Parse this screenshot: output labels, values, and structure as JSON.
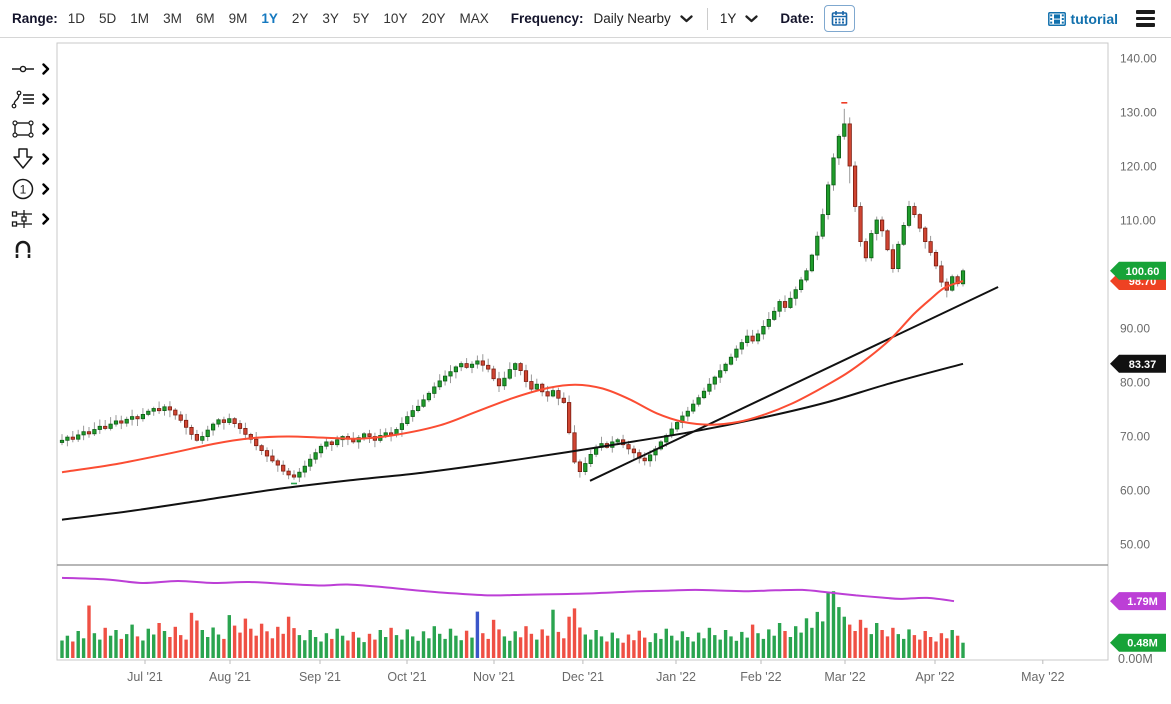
{
  "toolbar": {
    "range_label": "Range:",
    "ranges": [
      "1D",
      "5D",
      "1M",
      "3M",
      "6M",
      "9M",
      "1Y",
      "2Y",
      "3Y",
      "5Y",
      "10Y",
      "20Y",
      "MAX"
    ],
    "active_range": "1Y",
    "frequency_label": "Frequency:",
    "frequency_value": "Daily Nearby",
    "period_value": "1Y",
    "date_label": "Date:",
    "tutorial_label": "tutorial",
    "accent_color": "#1579c0"
  },
  "sidebar": {
    "tools": [
      "line-tool",
      "annotation-tool",
      "shape-tool",
      "arrow-tool",
      "number-annotation-tool",
      "levels-tool",
      "magnet-tool"
    ]
  },
  "chart_data": {
    "type": "candlestick",
    "ylim": [
      50,
      140
    ],
    "y_axis_ticks": [
      "140.00",
      "130.00",
      "120.00",
      "110.00",
      "100.00",
      "90.00",
      "80.00",
      "70.00",
      "60.00",
      "50.00"
    ],
    "x_axis_labels": [
      {
        "label": "Jul '21",
        "f": 0.0837
      },
      {
        "label": "Aug '21",
        "f": 0.1646
      },
      {
        "label": "Sep '21",
        "f": 0.2502
      },
      {
        "label": "Oct '21",
        "f": 0.333
      },
      {
        "label": "Nov '21",
        "f": 0.4158
      },
      {
        "label": "Dec '21",
        "f": 0.5004
      },
      {
        "label": "Jan '22",
        "f": 0.589
      },
      {
        "label": "Feb '22",
        "f": 0.6698
      },
      {
        "label": "Mar '22",
        "f": 0.7498
      },
      {
        "label": "Apr '22",
        "f": 0.8354
      },
      {
        "label": "May '22",
        "f": 0.938
      }
    ],
    "closes": [
      69.2,
      69.8,
      69.4,
      70.2,
      70.8,
      70.4,
      71.2,
      71.8,
      71.4,
      72.2,
      72.8,
      72.4,
      73.1,
      73.6,
      73.2,
      74.0,
      74.6,
      75.1,
      74.7,
      75.4,
      74.8,
      73.9,
      72.9,
      71.6,
      70.3,
      69.2,
      69.9,
      71.1,
      72.2,
      73.0,
      72.5,
      73.2,
      72.3,
      71.4,
      70.3,
      69.4,
      68.2,
      67.3,
      66.3,
      65.4,
      64.6,
      63.5,
      62.8,
      62.4,
      63.3,
      64.4,
      65.7,
      66.9,
      68.1,
      68.9,
      68.4,
      69.3,
      69.9,
      69.4,
      68.9,
      69.7,
      70.4,
      69.9,
      69.2,
      70.1,
      70.6,
      70.2,
      71.2,
      72.3,
      73.6,
      74.7,
      75.5,
      76.7,
      77.9,
      79.1,
      80.2,
      81.1,
      81.9,
      82.8,
      83.4,
      82.7,
      83.3,
      83.9,
      83.1,
      82.4,
      80.6,
      79.3,
      80.7,
      82.3,
      83.4,
      82.1,
      80.1,
      78.7,
      79.6,
      78.2,
      77.4,
      78.4,
      77.0,
      76.2,
      70.6,
      65.2,
      63.4,
      64.9,
      66.6,
      67.9,
      68.6,
      67.9,
      68.9,
      69.3,
      68.4,
      67.6,
      66.9,
      65.9,
      65.4,
      66.5,
      67.6,
      68.9,
      70.1,
      71.3,
      72.5,
      73.7,
      74.6,
      75.9,
      77.1,
      78.3,
      79.6,
      80.9,
      82.1,
      83.3,
      84.6,
      86.1,
      87.3,
      88.5,
      87.6,
      88.9,
      90.3,
      91.6,
      93.1,
      94.9,
      93.8,
      95.5,
      97.1,
      98.9,
      100.6,
      103.5,
      107.0,
      111.0,
      116.5,
      121.5,
      125.5,
      127.8,
      120.0,
      112.5,
      106.0,
      103.0,
      107.5,
      110.0,
      108.0,
      104.5,
      101.0,
      105.5,
      109.0,
      112.5,
      111.0,
      108.5,
      106.0,
      104.0,
      101.5,
      98.5,
      97.0,
      99.5,
      98.2,
      100.6
    ],
    "volumes": [
      0.55,
      0.7,
      0.52,
      0.85,
      0.62,
      1.65,
      0.78,
      0.58,
      0.95,
      0.7,
      0.88,
      0.6,
      0.75,
      1.05,
      0.68,
      0.55,
      0.92,
      0.74,
      1.1,
      0.85,
      0.66,
      0.98,
      0.72,
      0.58,
      1.42,
      1.18,
      0.88,
      0.66,
      0.96,
      0.74,
      0.6,
      1.35,
      1.02,
      0.8,
      1.24,
      0.92,
      0.7,
      1.08,
      0.84,
      0.62,
      0.98,
      0.76,
      1.3,
      0.94,
      0.72,
      0.56,
      0.88,
      0.66,
      0.52,
      0.78,
      0.6,
      0.92,
      0.7,
      0.55,
      0.82,
      0.64,
      0.5,
      0.76,
      0.58,
      0.88,
      0.66,
      0.95,
      0.72,
      0.58,
      0.9,
      0.68,
      0.54,
      0.84,
      0.62,
      1.0,
      0.76,
      0.6,
      0.92,
      0.7,
      0.56,
      0.86,
      0.64,
      1.46,
      0.78,
      0.6,
      1.2,
      0.9,
      0.68,
      0.54,
      0.84,
      0.65,
      1.0,
      0.76,
      0.58,
      0.9,
      0.7,
      1.52,
      0.82,
      0.62,
      1.3,
      1.56,
      0.96,
      0.74,
      0.58,
      0.88,
      0.68,
      0.52,
      0.8,
      0.62,
      0.48,
      0.74,
      0.56,
      0.86,
      0.64,
      0.5,
      0.78,
      0.6,
      0.92,
      0.7,
      0.55,
      0.84,
      0.66,
      0.52,
      0.8,
      0.62,
      0.95,
      0.72,
      0.58,
      0.88,
      0.68,
      0.54,
      0.82,
      0.64,
      1.05,
      0.78,
      0.6,
      0.9,
      0.7,
      1.1,
      0.85,
      0.66,
      1.0,
      0.8,
      1.25,
      0.95,
      1.45,
      1.15,
      2.05,
      2.1,
      1.6,
      1.3,
      1.05,
      0.85,
      1.2,
      0.95,
      0.75,
      1.1,
      0.88,
      0.68,
      0.95,
      0.75,
      0.6,
      0.9,
      0.72,
      0.58,
      0.85,
      0.66,
      0.52,
      0.78,
      0.62,
      0.88,
      0.7,
      0.48
    ],
    "wick_overrides": {
      "43": {
        "l": 61.9
      },
      "95": {
        "h": 72.0
      },
      "96": {
        "l": 62.3
      },
      "145": {
        "h": 130.6
      },
      "146": {
        "h": 129.0,
        "l": 116.8
      }
    },
    "volume_color_overrides": {
      "77": "#3a56c8"
    },
    "red_ma": [
      [
        0,
        63.3
      ],
      [
        0.06,
        64.8
      ],
      [
        0.12,
        66.8
      ],
      [
        0.17,
        68.6
      ],
      [
        0.21,
        69.6
      ],
      [
        0.25,
        69.9
      ],
      [
        0.29,
        69.7
      ],
      [
        0.33,
        69.5
      ],
      [
        0.37,
        70.2
      ],
      [
        0.42,
        72.0
      ],
      [
        0.46,
        74.5
      ],
      [
        0.5,
        77.0
      ],
      [
        0.54,
        78.9
      ],
      [
        0.57,
        79.5
      ],
      [
        0.6,
        78.8
      ],
      [
        0.63,
        76.8
      ],
      [
        0.66,
        74.2
      ],
      [
        0.69,
        72.6
      ],
      [
        0.72,
        72.1
      ],
      [
        0.75,
        72.6
      ],
      [
        0.78,
        74.0
      ],
      [
        0.81,
        76.0
      ],
      [
        0.84,
        78.6
      ],
      [
        0.87,
        81.5
      ],
      [
        0.895,
        84.5
      ],
      [
        0.92,
        88.0
      ],
      [
        0.945,
        92.5
      ],
      [
        0.965,
        95.5
      ],
      [
        0.98,
        97.5
      ],
      [
        1.0,
        98.7
      ]
    ],
    "black_ma": [
      [
        0,
        54.5
      ],
      [
        0.08,
        56.2
      ],
      [
        0.16,
        58.2
      ],
      [
        0.24,
        60.2
      ],
      [
        0.32,
        61.8
      ],
      [
        0.4,
        63.2
      ],
      [
        0.48,
        65.0
      ],
      [
        0.56,
        67.0
      ],
      [
        0.62,
        68.6
      ],
      [
        0.7,
        70.8
      ],
      [
        0.78,
        73.5
      ],
      [
        0.85,
        76.3
      ],
      [
        0.92,
        79.8
      ],
      [
        1.0,
        83.37
      ]
    ],
    "trendline": {
      "f1": 0.586,
      "p1": 61.7,
      "f2": 1.039,
      "p2": 97.6
    },
    "open_interest_line": [
      [
        0,
        2.52
      ],
      [
        0.05,
        2.47
      ],
      [
        0.09,
        2.36
      ],
      [
        0.13,
        2.42
      ],
      [
        0.17,
        2.36
      ],
      [
        0.21,
        2.39
      ],
      [
        0.25,
        2.33
      ],
      [
        0.29,
        2.28
      ],
      [
        0.32,
        2.31
      ],
      [
        0.36,
        2.23
      ],
      [
        0.4,
        2.12
      ],
      [
        0.44,
        2.03
      ],
      [
        0.48,
        1.97
      ],
      [
        0.52,
        1.99
      ],
      [
        0.56,
        2.01
      ],
      [
        0.6,
        2.04
      ],
      [
        0.64,
        2.09
      ],
      [
        0.68,
        2.12
      ],
      [
        0.71,
        2.14
      ],
      [
        0.74,
        2.12
      ],
      [
        0.77,
        2.1
      ],
      [
        0.8,
        2.13
      ],
      [
        0.83,
        2.14
      ],
      [
        0.86,
        2.06
      ],
      [
        0.89,
        1.97
      ],
      [
        0.92,
        1.9
      ],
      [
        0.94,
        1.86
      ],
      [
        0.97,
        1.89
      ],
      [
        1.0,
        1.79
      ]
    ],
    "price_badges": [
      {
        "label": "98.70",
        "value": 98.7,
        "color": "#ee4223"
      },
      {
        "label": "100.60",
        "value": 100.6,
        "color": "#17a338"
      },
      {
        "label": "83.37",
        "value": 83.37,
        "color": "#111111"
      }
    ],
    "volume_badges": [
      {
        "label": "1.79M",
        "value": 1.79,
        "color": "#bc3fd6"
      },
      {
        "label": "0.48M",
        "value": 0.48,
        "color": "#17a338"
      }
    ],
    "volume_axis_label": "0.00M",
    "markers": [
      {
        "type": "high",
        "index": 145,
        "price": 131.7,
        "color": "#ee3b24"
      },
      {
        "type": "low",
        "index": 43,
        "price": 61.2,
        "color": "#2aa44f"
      }
    ],
    "colors": {
      "up": "#1f9c2b",
      "up_border": "#0d5c16",
      "down": "#cf4532",
      "down_border": "#7c1d10",
      "wick": "#999999",
      "vol_up": "#2aa44f",
      "vol_down": "#ef5044",
      "red_ma": "#fb4d33",
      "black_ma": "#111111",
      "trend": "#111111",
      "oi": "#bc3fd6",
      "axis_text": "#6a6a6a",
      "border": "#c9c9c9",
      "divider": "#8c8c8c"
    }
  }
}
